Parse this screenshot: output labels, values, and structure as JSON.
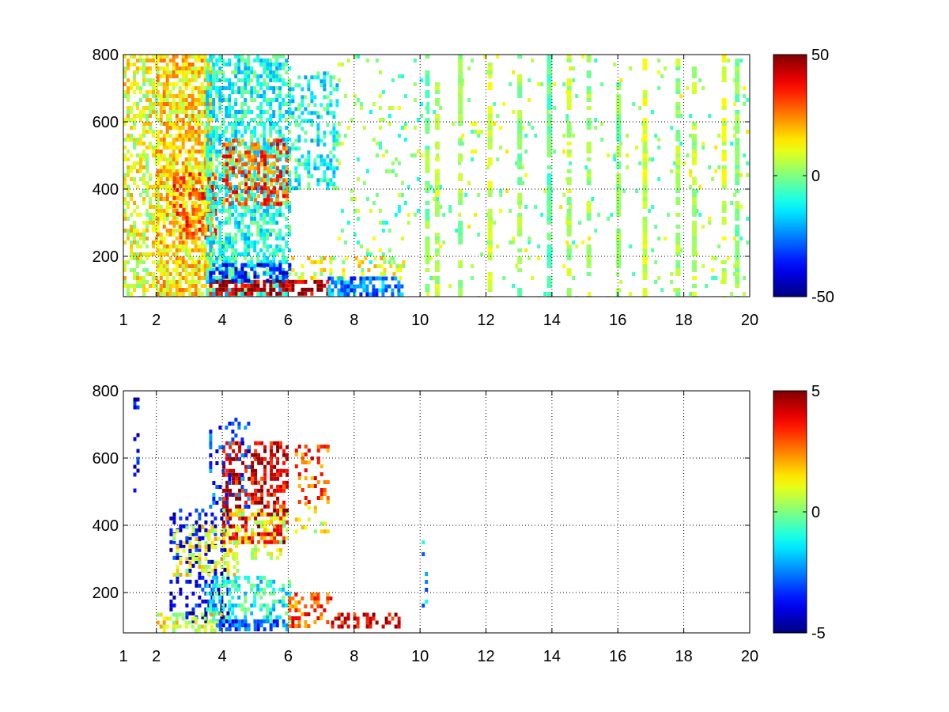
{
  "chart_data": [
    {
      "type": "heatmap",
      "title": "",
      "xlabel": "",
      "ylabel": "",
      "xlim": [
        1,
        20
      ],
      "ylim": [
        80,
        800
      ],
      "x_ticks": [
        1,
        2,
        4,
        6,
        8,
        10,
        12,
        14,
        16,
        18,
        20
      ],
      "x_tick_labels": [
        "1",
        "2",
        "4",
        "6",
        "8",
        "10",
        "12",
        "14",
        "16",
        "18",
        "20"
      ],
      "y_ticks": [
        200,
        400,
        600,
        800
      ],
      "y_tick_labels": [
        "200",
        "400",
        "600",
        "800"
      ],
      "grid": true,
      "colormap": "jet",
      "colorbar": {
        "min": -50,
        "max": 50,
        "tick_labels": [
          "50",
          "0",
          "-50"
        ]
      },
      "value_clusters": [
        {
          "x": [
            1.0,
            2.0
          ],
          "y": [
            80,
            800
          ],
          "value": 10,
          "density": 0.5
        },
        {
          "x": [
            2.0,
            3.7
          ],
          "y": [
            80,
            800
          ],
          "value": 15,
          "density": 0.75
        },
        {
          "x": [
            2.5,
            3.8
          ],
          "y": [
            250,
            450
          ],
          "value": 30,
          "density": 0.55
        },
        {
          "x": [
            3.5,
            6.0
          ],
          "y": [
            80,
            800
          ],
          "value": -10,
          "density": 0.6
        },
        {
          "x": [
            4.0,
            6.0
          ],
          "y": [
            350,
            550
          ],
          "value": 30,
          "density": 0.45
        },
        {
          "x": [
            3.6,
            7.2
          ],
          "y": [
            85,
            130
          ],
          "value": 45,
          "density": 0.6
        },
        {
          "x": [
            3.6,
            6.0
          ],
          "y": [
            130,
            180
          ],
          "value": -35,
          "density": 0.5
        },
        {
          "x": [
            6.0,
            7.5
          ],
          "y": [
            400,
            750
          ],
          "value": -10,
          "density": 0.35
        },
        {
          "x": [
            6.0,
            9.5
          ],
          "y": [
            130,
            200
          ],
          "value": 10,
          "density": 0.35
        },
        {
          "x": [
            7.2,
            9.5
          ],
          "y": [
            85,
            140
          ],
          "value": -25,
          "density": 0.7
        },
        {
          "x": [
            7.5,
            10.0
          ],
          "y": [
            180,
            800
          ],
          "value": 0,
          "density": 0.08
        },
        {
          "x": [
            10.0,
            20.0
          ],
          "y": [
            80,
            800
          ],
          "value": 3,
          "density": 0.05
        }
      ],
      "value_columns": [
        {
          "x": 10.2,
          "value": 0
        },
        {
          "x": 10.5,
          "value": 5
        },
        {
          "x": 11.2,
          "value": 3
        },
        {
          "x": 12.1,
          "value": 8
        },
        {
          "x": 13.0,
          "value": 2
        },
        {
          "x": 13.9,
          "value": -3
        },
        {
          "x": 14.5,
          "value": 5
        },
        {
          "x": 15.1,
          "value": 3
        },
        {
          "x": 16.0,
          "value": 0
        },
        {
          "x": 16.8,
          "value": 8
        },
        {
          "x": 17.8,
          "value": 3
        },
        {
          "x": 18.3,
          "value": 5
        },
        {
          "x": 19.2,
          "value": 8
        },
        {
          "x": 19.6,
          "value": 0
        }
      ],
      "value_columns_y": [
        80,
        800
      ],
      "value_columns_density": 0.45
    },
    {
      "type": "heatmap",
      "title": "",
      "xlabel": "",
      "ylabel": "",
      "xlim": [
        1,
        20
      ],
      "ylim": [
        80,
        800
      ],
      "x_ticks": [
        1,
        2,
        4,
        6,
        8,
        10,
        12,
        14,
        16,
        18,
        20
      ],
      "x_tick_labels": [
        "1",
        "2",
        "4",
        "6",
        "8",
        "10",
        "12",
        "14",
        "16",
        "18",
        "20"
      ],
      "y_ticks": [
        200,
        400,
        600,
        800
      ],
      "y_tick_labels": [
        "200",
        "400",
        "600",
        "800"
      ],
      "grid": true,
      "colormap": "jet",
      "colorbar": {
        "min": -5,
        "max": 5,
        "tick_labels": [
          "5",
          "0",
          "-5"
        ]
      },
      "value_clusters": [
        {
          "x": [
            1.3,
            1.45
          ],
          "y": [
            500,
            780
          ],
          "value": -4,
          "density": 0.3
        },
        {
          "x": [
            2.4,
            4.2
          ],
          "y": [
            120,
            450
          ],
          "value": -4,
          "density": 0.3
        },
        {
          "x": [
            2.5,
            4.5
          ],
          "y": [
            250,
            400
          ],
          "value": 1,
          "density": 0.3
        },
        {
          "x": [
            4.0,
            6.0
          ],
          "y": [
            350,
            650
          ],
          "value": 4,
          "density": 0.55
        },
        {
          "x": [
            4.0,
            6.0
          ],
          "y": [
            300,
            450
          ],
          "value": 1,
          "density": 0.3
        },
        {
          "x": [
            3.6,
            4.8
          ],
          "y": [
            450,
            720
          ],
          "value": -3,
          "density": 0.2
        },
        {
          "x": [
            3.5,
            6.0
          ],
          "y": [
            120,
            250
          ],
          "value": -1,
          "density": 0.45
        },
        {
          "x": [
            2.0,
            4.0
          ],
          "y": [
            85,
            140
          ],
          "value": 1,
          "density": 0.4
        },
        {
          "x": [
            3.8,
            6.0
          ],
          "y": [
            85,
            120
          ],
          "value": -3,
          "density": 0.6
        },
        {
          "x": [
            6.2,
            7.2
          ],
          "y": [
            470,
            640
          ],
          "value": 3,
          "density": 0.35
        },
        {
          "x": [
            6.2,
            7.2
          ],
          "y": [
            380,
            470
          ],
          "value": 1,
          "density": 0.25
        },
        {
          "x": [
            6.0,
            7.3
          ],
          "y": [
            100,
            200
          ],
          "value": 3,
          "density": 0.4
        },
        {
          "x": [
            7.3,
            9.4
          ],
          "y": [
            100,
            140
          ],
          "value": 4,
          "density": 0.5
        },
        {
          "x": [
            10.05,
            10.15
          ],
          "y": [
            100,
            520
          ],
          "value": -2,
          "density": 0.15
        }
      ]
    }
  ]
}
